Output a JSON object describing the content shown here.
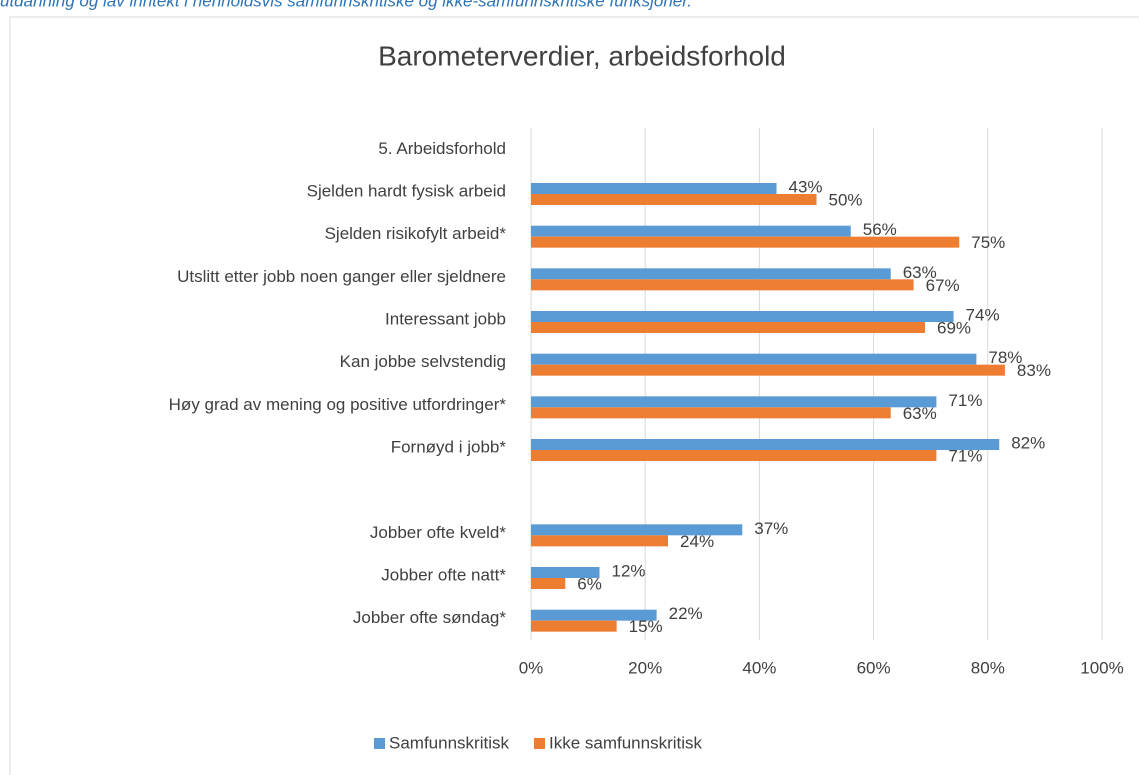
{
  "caption": "utdanning og lav inntekt i henholdsvis samfunnskritiske og ikke-samfunnskritiske funksjoner.",
  "chart_data": {
    "type": "hbar",
    "title": "Barometerverdier, arbeidsforhold",
    "categories": [
      "5. Arbeidsforhold",
      "Sjelden hardt fysisk arbeid",
      "Sjelden risikofylt arbeid*",
      "Utslitt etter jobb noen ganger eller sjeldnere",
      "Interessant jobb",
      "Kan jobbe selvstendig",
      "Høy grad av mening og positive utfordringer*",
      "Fornøyd i jobb*",
      null,
      "Jobber ofte kveld*",
      "Jobber ofte natt*",
      "Jobber ofte søndag*"
    ],
    "series": [
      {
        "name": "Samfunnskritisk",
        "color": "#5b9bd5",
        "values": [
          null,
          43,
          56,
          63,
          74,
          78,
          71,
          82,
          null,
          37,
          12,
          22
        ],
        "value_labels": [
          null,
          "43%",
          "56%",
          "63%",
          "74%",
          "78%",
          "71%",
          "82%",
          null,
          "37%",
          "12%",
          "22%"
        ]
      },
      {
        "name": "Ikke samfunnskritisk",
        "color": "#ed7d31",
        "values": [
          null,
          50,
          75,
          67,
          69,
          83,
          63,
          71,
          null,
          24,
          6,
          15
        ],
        "value_labels": [
          null,
          "50%",
          "75%",
          "67%",
          "69%",
          "83%",
          "63%",
          "71%",
          null,
          "24%",
          "6%",
          "15%"
        ]
      }
    ],
    "xlim": [
      0,
      100
    ],
    "xticks": [
      {
        "value": 0,
        "label": "0%"
      },
      {
        "value": 20,
        "label": "20%"
      },
      {
        "value": 40,
        "label": "40%"
      },
      {
        "value": 60,
        "label": "60%"
      },
      {
        "value": 80,
        "label": "80%"
      },
      {
        "value": 100,
        "label": "100%"
      }
    ],
    "grid": true,
    "legend": "bottom"
  }
}
